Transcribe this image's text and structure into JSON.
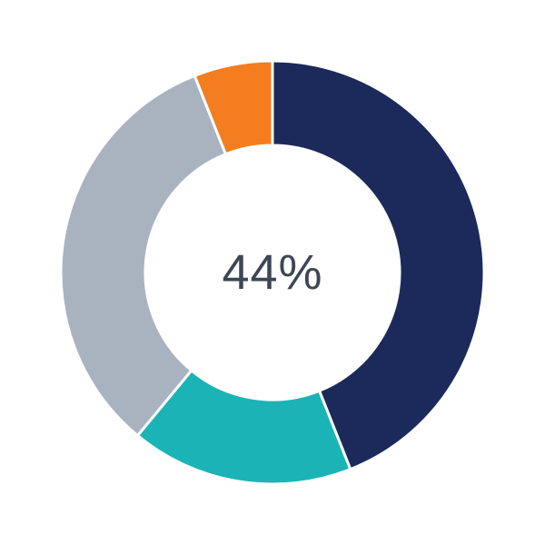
{
  "chart_data": {
    "type": "pie",
    "variant": "donut",
    "center_label": "44%",
    "values": [
      44,
      17,
      33,
      6
    ],
    "colors": [
      "#1b2a5b",
      "#1bb4b6",
      "#a9b3c0",
      "#f47d20"
    ],
    "start_angle": "top",
    "direction": "clockwise",
    "legend": "none"
  }
}
